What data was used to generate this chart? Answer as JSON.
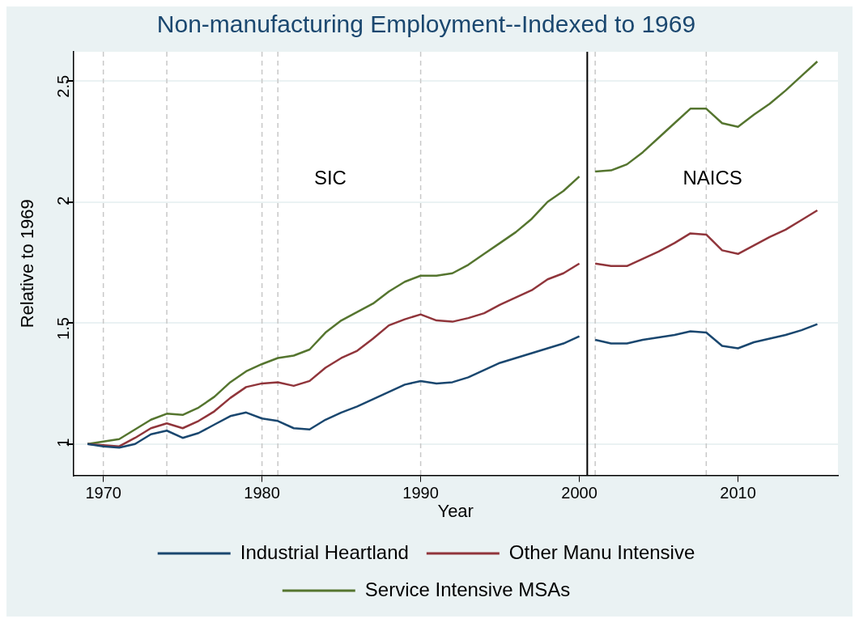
{
  "chart_data": {
    "type": "line",
    "title": "Non-manufacturing Employment--Indexed to 1969",
    "xlabel": "Year",
    "ylabel": "Relative to 1969",
    "x": [
      1969,
      1970,
      1971,
      1972,
      1973,
      1974,
      1975,
      1976,
      1977,
      1978,
      1979,
      1980,
      1981,
      1982,
      1983,
      1984,
      1985,
      1986,
      1987,
      1988,
      1989,
      1990,
      1991,
      1992,
      1993,
      1994,
      1995,
      1996,
      1997,
      1998,
      1999,
      2000,
      2000.5,
      2001,
      2002,
      2003,
      2004,
      2005,
      2006,
      2007,
      2008,
      2009,
      2010,
      2011,
      2012,
      2013,
      2014,
      2015
    ],
    "series": [
      {
        "name": "Industrial Heartland",
        "color": "#1a476f",
        "values": [
          1.0,
          0.99,
          0.985,
          1.0,
          1.04,
          1.055,
          1.025,
          1.045,
          1.08,
          1.115,
          1.13,
          1.105,
          1.095,
          1.065,
          1.06,
          1.1,
          1.13,
          1.155,
          1.185,
          1.215,
          1.245,
          1.26,
          1.25,
          1.255,
          1.275,
          1.305,
          1.335,
          1.355,
          1.375,
          1.395,
          1.415,
          1.445,
          null,
          1.43,
          1.415,
          1.415,
          1.43,
          1.44,
          1.45,
          1.465,
          1.46,
          1.405,
          1.395,
          1.42,
          1.435,
          1.45,
          1.47,
          1.495
        ]
      },
      {
        "name": "Other Manu Intensive",
        "color": "#90353b",
        "values": [
          1.0,
          0.995,
          0.99,
          1.025,
          1.065,
          1.085,
          1.065,
          1.095,
          1.135,
          1.19,
          1.235,
          1.25,
          1.255,
          1.24,
          1.26,
          1.315,
          1.355,
          1.385,
          1.435,
          1.49,
          1.515,
          1.535,
          1.51,
          1.505,
          1.52,
          1.54,
          1.575,
          1.605,
          1.635,
          1.68,
          1.705,
          1.745,
          null,
          1.745,
          1.735,
          1.735,
          1.765,
          1.795,
          1.83,
          1.87,
          1.865,
          1.8,
          1.785,
          1.82,
          1.855,
          1.885,
          1.925,
          1.965
        ]
      },
      {
        "name": "Service Intensive MSAs",
        "color": "#55752f",
        "values": [
          1.0,
          1.01,
          1.02,
          1.06,
          1.1,
          1.125,
          1.12,
          1.15,
          1.195,
          1.255,
          1.3,
          1.33,
          1.355,
          1.365,
          1.39,
          1.46,
          1.51,
          1.545,
          1.58,
          1.63,
          1.67,
          1.695,
          1.695,
          1.705,
          1.74,
          1.785,
          1.83,
          1.875,
          1.93,
          2.0,
          2.045,
          2.105,
          null,
          2.125,
          2.13,
          2.155,
          2.205,
          2.265,
          2.325,
          2.385,
          2.385,
          2.325,
          2.31,
          2.36,
          2.405,
          2.46,
          2.52,
          2.58
        ]
      }
    ],
    "xlim": [
      1968.1,
      2016.3
    ],
    "xticks": [
      1970,
      1980,
      1990,
      2000,
      2010
    ],
    "ylim": [
      0.87,
      2.62
    ],
    "yticks": [
      1,
      1.5,
      2,
      2.5
    ],
    "grid": "y",
    "legend": "bottom",
    "marker": "none",
    "line_style": "solid",
    "ref_lines": [
      {
        "axis": "x",
        "value": 1970,
        "color": "#c8c8c8",
        "line_style": "dashed"
      },
      {
        "axis": "x",
        "value": 1974,
        "color": "#c8c8c8",
        "line_style": "dashed"
      },
      {
        "axis": "x",
        "value": 1980,
        "color": "#c8c8c8",
        "line_style": "dashed"
      },
      {
        "axis": "x",
        "value": 1981,
        "color": "#c8c8c8",
        "line_style": "dashed"
      },
      {
        "axis": "x",
        "value": 1990,
        "color": "#c8c8c8",
        "line_style": "dashed"
      },
      {
        "axis": "x",
        "value": 2001,
        "color": "#c8c8c8",
        "line_style": "dashed"
      },
      {
        "axis": "x",
        "value": 2008,
        "color": "#c8c8c8",
        "line_style": "dashed"
      },
      {
        "axis": "x",
        "value": 2000.5,
        "color": "#000000",
        "line_style": "solid"
      }
    ],
    "annotations": [
      "SIC",
      "NAICS"
    ]
  }
}
